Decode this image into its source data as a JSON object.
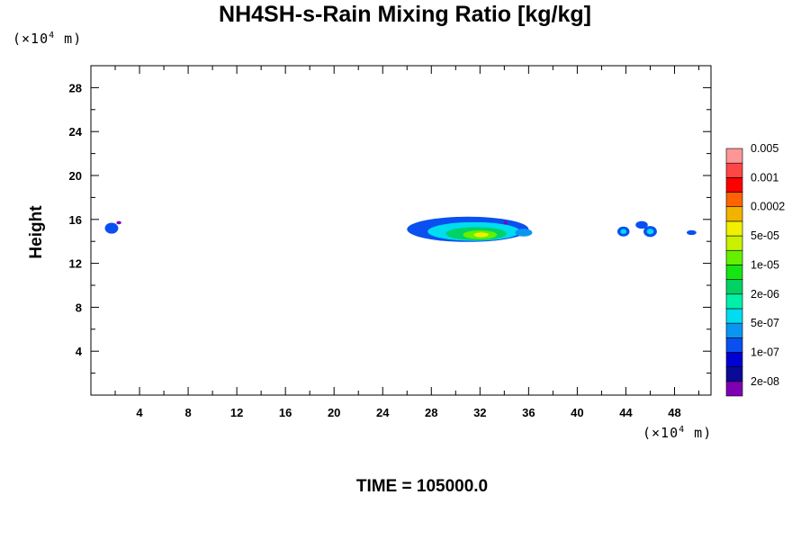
{
  "chart_data": {
    "type": "heatmap",
    "title": "NH4SH-s-Rain Mixing Ratio [kg/kg]",
    "ylabel": "Height",
    "x_unit": "(×10",
    "y_unit": "(×10",
    "unit_exponent": "4",
    "unit_suffix": " m)",
    "xlim": [
      0,
      51
    ],
    "ylim": [
      0,
      30
    ],
    "x_ticks": [
      4,
      8,
      12,
      16,
      20,
      24,
      28,
      32,
      36,
      40,
      44,
      48
    ],
    "x_tick_labels": [
      "4",
      "8",
      "12",
      "16",
      "20",
      "24",
      "28",
      "32",
      "36",
      "40",
      "44",
      "48"
    ],
    "y_ticks": [
      4,
      8,
      12,
      16,
      20,
      24,
      28
    ],
    "y_tick_labels": [
      "4",
      "8",
      "12",
      "16",
      "20",
      "24",
      "28"
    ],
    "colorbar": {
      "colors": [
        "#7f00b2",
        "#0a0a96",
        "#0000d2",
        "#0a50f0",
        "#0a96f0",
        "#00dcf0",
        "#00f0aa",
        "#00d264",
        "#14e614",
        "#64f000",
        "#c8f000",
        "#f0f000",
        "#f0b400",
        "#ff6400",
        "#ff0000",
        "#ff4646",
        "#ff9696"
      ],
      "labels": [
        "2e-08",
        "1e-07",
        "5e-07",
        "2e-06",
        "1e-05",
        "5e-05",
        "0.0002",
        "0.001",
        "0.005"
      ]
    },
    "blobs": [
      {
        "cx": 1.7,
        "cy": 15.2,
        "rx": 0.55,
        "ry": 0.5,
        "level": 3
      },
      {
        "cx": 2.3,
        "cy": 15.7,
        "rx": 0.2,
        "ry": 0.15,
        "level": 0
      },
      {
        "cx": 31.0,
        "cy": 15.1,
        "rx": 5.0,
        "ry": 1.15,
        "level": 3
      },
      {
        "cx": 31.5,
        "cy": 14.9,
        "rx": 3.8,
        "ry": 0.85,
        "level": 5
      },
      {
        "cx": 31.7,
        "cy": 14.7,
        "rx": 2.5,
        "ry": 0.6,
        "level": 7
      },
      {
        "cx": 32.0,
        "cy": 14.6,
        "rx": 1.4,
        "ry": 0.4,
        "level": 9
      },
      {
        "cx": 32.1,
        "cy": 14.6,
        "rx": 0.6,
        "ry": 0.22,
        "level": 11
      },
      {
        "cx": 35.6,
        "cy": 14.8,
        "rx": 0.7,
        "ry": 0.35,
        "level": 4
      },
      {
        "cx": 43.8,
        "cy": 14.9,
        "rx": 0.5,
        "ry": 0.45,
        "level": 3
      },
      {
        "cx": 43.8,
        "cy": 14.9,
        "rx": 0.25,
        "ry": 0.22,
        "level": 5
      },
      {
        "cx": 45.3,
        "cy": 15.5,
        "rx": 0.5,
        "ry": 0.35,
        "level": 3
      },
      {
        "cx": 46.0,
        "cy": 14.9,
        "rx": 0.55,
        "ry": 0.5,
        "level": 3
      },
      {
        "cx": 46.0,
        "cy": 14.9,
        "rx": 0.28,
        "ry": 0.25,
        "level": 5
      },
      {
        "cx": 49.4,
        "cy": 14.8,
        "rx": 0.4,
        "ry": 0.22,
        "level": 3
      },
      {
        "cx": 34.1,
        "cy": 15.7,
        "rx": 0.15,
        "ry": 0.15,
        "level": 0
      }
    ]
  },
  "footer": {
    "time_label": "TIME = 105000.0"
  }
}
